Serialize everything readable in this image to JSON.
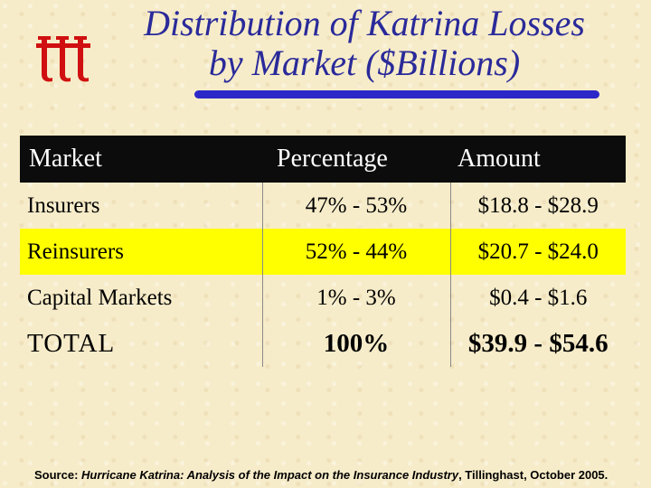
{
  "title": {
    "line1": "Distribution of Katrina Losses",
    "line2": "by Market ($Billions)"
  },
  "logo": {
    "icon": "tillinghast-ttt-logo-icon",
    "color": "#d01010"
  },
  "table": {
    "headers": {
      "market": "Market",
      "percentage": "Percentage",
      "amount": "Amount"
    },
    "rows": [
      {
        "market": "Insurers",
        "percentage": "47% - 53%",
        "amount": "$18.8 - $28.9",
        "highlight": false
      },
      {
        "market": "Reinsurers",
        "percentage": "52% - 44%",
        "amount": "$20.7 - $24.0",
        "highlight": true
      },
      {
        "market": "Capital Markets",
        "percentage": "1% - 3%",
        "amount": "$0.4 - $1.6",
        "highlight": false
      }
    ],
    "total": {
      "market": "TOTAL",
      "percentage": "100%",
      "amount": "$39.9 - $54.6"
    }
  },
  "source": {
    "label": "Source: ",
    "publication": "Hurricane Katrina: Analysis of the Impact on the Insurance Industry",
    "rest": ", Tillinghast, October 2005."
  },
  "colors": {
    "title": "#2a2a9a",
    "title_bar": "#2c28c8",
    "header_bg": "#0c0c0c",
    "highlight": "#ffff00",
    "background": "#f7ecc9"
  }
}
